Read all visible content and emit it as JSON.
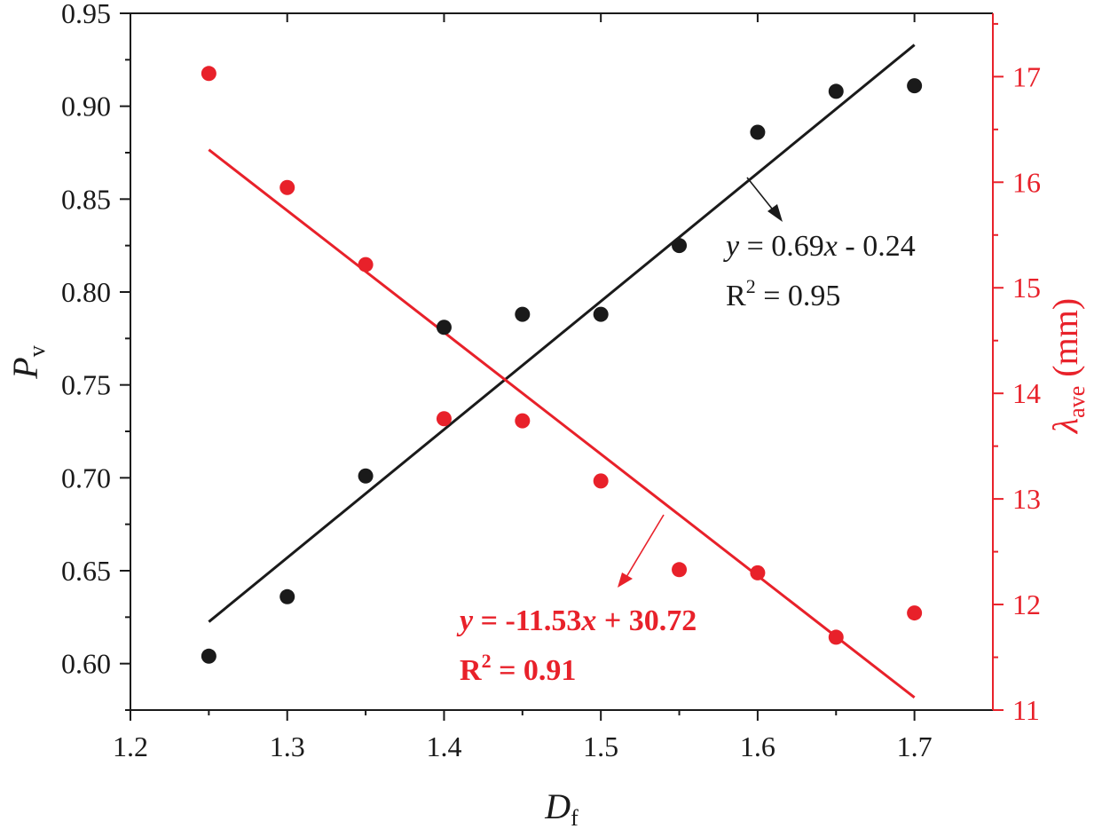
{
  "chart_data": {
    "type": "scatter",
    "x_label": {
      "main": "D",
      "sub": "f"
    },
    "y_left_label": {
      "main": "P",
      "sub": "v"
    },
    "y_right_label": {
      "main": "λ",
      "sub": "ave",
      "unit": " (mm)"
    },
    "xlim": [
      1.2,
      1.75
    ],
    "x_ticks": [
      "1.2",
      "1.3",
      "1.4",
      "1.5",
      "1.6",
      "1.7"
    ],
    "ylim_left": [
      0.575,
      0.95
    ],
    "y_left_ticks": [
      "0.60",
      "0.65",
      "0.70",
      "0.75",
      "0.80",
      "0.85",
      "0.90",
      "0.95"
    ],
    "ylim_right": [
      11,
      17.6
    ],
    "y_right_ticks": [
      "11",
      "12",
      "13",
      "14",
      "15",
      "16",
      "17"
    ],
    "series": [
      {
        "axis": "left",
        "color": "#1a1a1a",
        "x": [
          1.25,
          1.3,
          1.35,
          1.4,
          1.45,
          1.5,
          1.55,
          1.6,
          1.65,
          1.7
        ],
        "y": [
          0.604,
          0.636,
          0.701,
          0.781,
          0.788,
          0.788,
          0.825,
          0.886,
          0.908,
          0.911
        ],
        "fit": {
          "slope": 0.69,
          "intercept": -0.24,
          "x_range": [
            1.25,
            1.7
          ]
        },
        "equation": {
          "y": "y",
          "eq": " = 0.69",
          "x": "x",
          "rest": " - 0.24"
        },
        "r2": {
          "R": "R",
          "exp": "2",
          "value": " = 0.95"
        }
      },
      {
        "axis": "right",
        "color": "#e8212a",
        "x": [
          1.25,
          1.3,
          1.35,
          1.4,
          1.45,
          1.5,
          1.55,
          1.6,
          1.65,
          1.7
        ],
        "y": [
          17.03,
          15.95,
          15.22,
          13.76,
          13.74,
          13.17,
          12.33,
          12.3,
          11.69,
          11.92
        ],
        "fit": {
          "slope": -11.53,
          "intercept": 30.72,
          "x_range": [
            1.25,
            1.7
          ]
        },
        "equation": {
          "y": "y",
          "eq": " = -11.53",
          "x": "x",
          "rest": " + 30.72"
        },
        "r2": {
          "R": "R",
          "exp": "2",
          "value": " = 0.91"
        }
      }
    ]
  }
}
